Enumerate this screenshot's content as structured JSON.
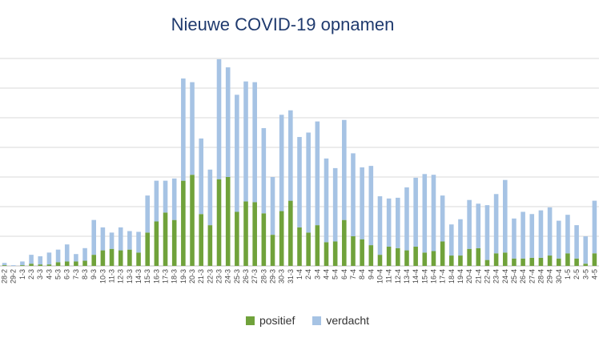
{
  "chart_data": {
    "type": "bar",
    "stacked": true,
    "title": "Nieuwe COVID-19 opnamen",
    "xlabel": "",
    "ylabel": "",
    "ylim": [
      0,
      280
    ],
    "grid": true,
    "legend": "bottom",
    "categories": [
      "28-2",
      "29-2",
      "1-3",
      "2-3",
      "3-3",
      "4-3",
      "5-3",
      "6-3",
      "7-3",
      "8-3",
      "9-3",
      "10-3",
      "11-3",
      "12-3",
      "13-3",
      "14-3",
      "15-3",
      "16-3",
      "17-3",
      "18-3",
      "19-3",
      "20-3",
      "21-3",
      "22-3",
      "23-3",
      "24-3",
      "25-3",
      "26-3",
      "27-3",
      "28-3",
      "29-3",
      "30-3",
      "31-3",
      "1-4",
      "2-4",
      "3-4",
      "4-4",
      "5-4",
      "6-4",
      "7-4",
      "8-4",
      "9-4",
      "10-4",
      "11-4",
      "12-4",
      "13-4",
      "14-4",
      "15-4",
      "16-4",
      "17-4",
      "18-4",
      "19-4",
      "20-4",
      "21-4",
      "22-4",
      "23-4",
      "24-4",
      "25-4",
      "26-4",
      "27-4",
      "28-4",
      "29-4",
      "30-4",
      "1-5",
      "2-5",
      "3-5",
      "4-5"
    ],
    "series": [
      {
        "name": "positief",
        "color": "#70a23b",
        "values": [
          1,
          0,
          1,
          3,
          2,
          2,
          5,
          6,
          6,
          7,
          15,
          21,
          23,
          21,
          22,
          18,
          45,
          60,
          72,
          62,
          115,
          123,
          70,
          55,
          117,
          120,
          73,
          87,
          86,
          71,
          42,
          74,
          88,
          52,
          45,
          55,
          32,
          33,
          62,
          40,
          36,
          28,
          15,
          26,
          24,
          21,
          26,
          18,
          20,
          33,
          14,
          14,
          23,
          24,
          8,
          17,
          18,
          10,
          10,
          11,
          11,
          14,
          10,
          17,
          10,
          3,
          17
        ]
      },
      {
        "name": "verdacht",
        "color": "#a6c3e4",
        "values": [
          3,
          1,
          5,
          12,
          11,
          16,
          17,
          23,
          10,
          17,
          47,
          31,
          22,
          31,
          25,
          28,
          50,
          55,
          43,
          56,
          138,
          125,
          102,
          75,
          162,
          148,
          158,
          162,
          162,
          115,
          78,
          130,
          122,
          122,
          135,
          140,
          113,
          99,
          135,
          112,
          97,
          107,
          79,
          65,
          68,
          85,
          93,
          106,
          103,
          62,
          42,
          49,
          66,
          60,
          74,
          80,
          98,
          54,
          63,
          59,
          64,
          65,
          51,
          52,
          45,
          37,
          71
        ]
      }
    ]
  }
}
